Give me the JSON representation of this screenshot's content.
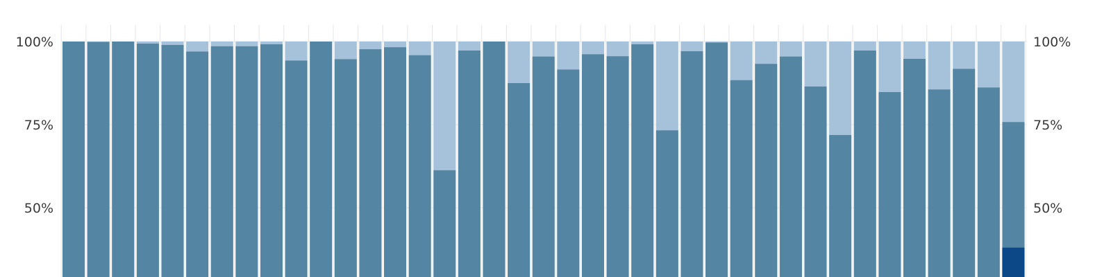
{
  "chart_data": {
    "type": "bar",
    "stacked": true,
    "grid": true,
    "ylim": [
      0,
      100
    ],
    "y_ticks": [
      {
        "value": 100,
        "label": "100%"
      },
      {
        "value": 75,
        "label": "75%"
      },
      {
        "value": 50,
        "label": "50%"
      }
    ],
    "colors": {
      "primary": "#5485a2",
      "remainder": "#a6c2da",
      "highlight": "#0c4887"
    },
    "values": [
      100,
      99.9,
      100,
      99.4,
      99.0,
      97.0,
      98.6,
      98.6,
      99.2,
      94.3,
      100,
      94.7,
      97.7,
      98.3,
      95.9,
      61.3,
      97.3,
      100,
      87.5,
      95.5,
      91.6,
      96.2,
      95.6,
      99.2,
      73.3,
      97.1,
      99.7,
      88.4,
      93.3,
      95.5,
      86.5,
      71.9,
      97.3,
      84.8,
      94.8,
      85.6,
      91.8,
      86.2,
      75.8
    ],
    "highlight_values": [
      0,
      0,
      0,
      0,
      0,
      0,
      0,
      0,
      0,
      0,
      0,
      0,
      0,
      0,
      0,
      0,
      0,
      0,
      0,
      0,
      0,
      0,
      0,
      0,
      0,
      0,
      0,
      0,
      0,
      0,
      0,
      0,
      0,
      0,
      0,
      0,
      0,
      0,
      38
    ]
  }
}
